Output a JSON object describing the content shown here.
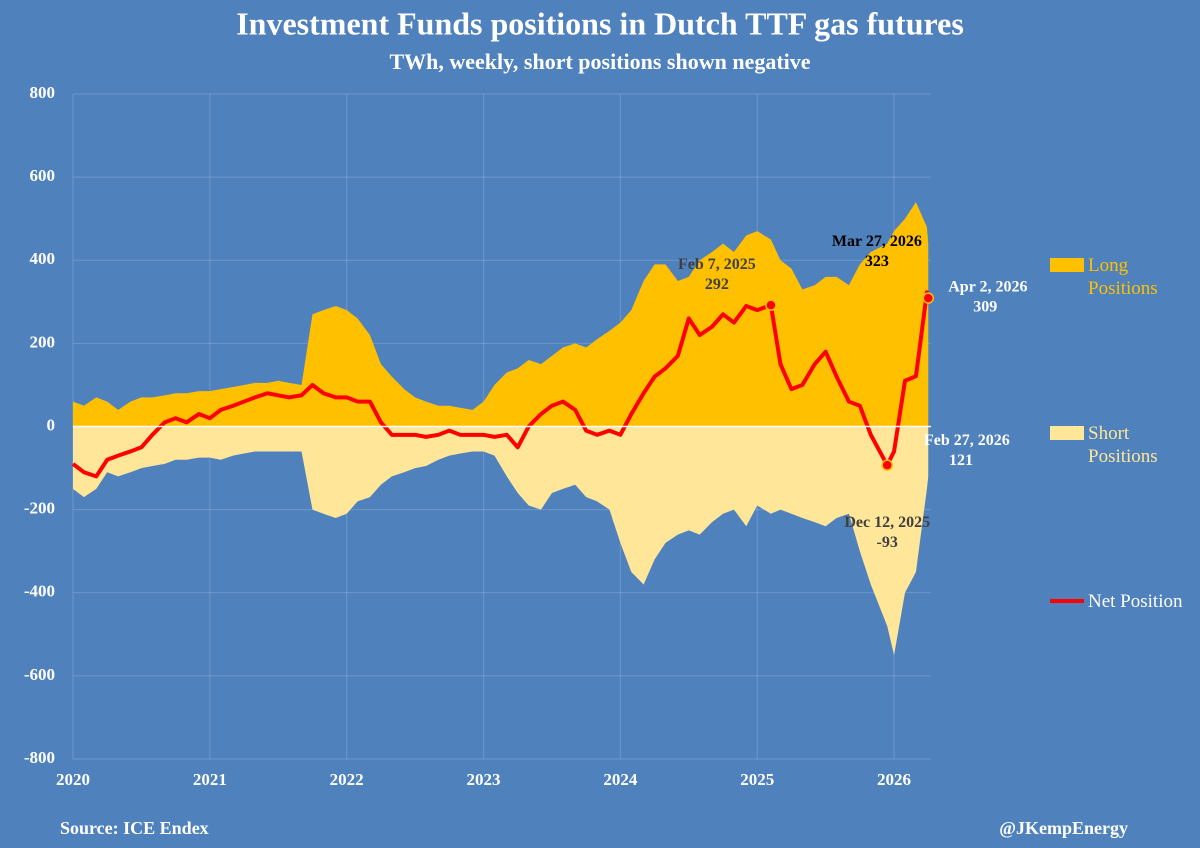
{
  "chart_data": {
    "type": "area-line",
    "title": "Investment Funds positions in Dutch TTF gas futures",
    "subtitle": "TWh, weekly, short positions shown negative",
    "source": "Source: ICE Endex",
    "credit": "@JKempEnergy",
    "x": [
      2020,
      2020.08,
      2020.17,
      2020.25,
      2020.33,
      2020.42,
      2020.5,
      2020.58,
      2020.67,
      2020.75,
      2020.83,
      2020.92,
      2021,
      2021.08,
      2021.17,
      2021.25,
      2021.33,
      2021.42,
      2021.5,
      2021.58,
      2021.67,
      2021.75,
      2021.83,
      2021.92,
      2022,
      2022.08,
      2022.17,
      2022.25,
      2022.33,
      2022.42,
      2022.5,
      2022.58,
      2022.67,
      2022.75,
      2022.83,
      2022.92,
      2023,
      2023.08,
      2023.17,
      2023.25,
      2023.33,
      2023.42,
      2023.5,
      2023.58,
      2023.67,
      2023.75,
      2023.83,
      2023.92,
      2024,
      2024.08,
      2024.17,
      2024.25,
      2024.33,
      2024.42,
      2024.5,
      2024.58,
      2024.67,
      2024.75,
      2024.83,
      2024.92,
      2025,
      2025.1,
      2025.17,
      2025.25,
      2025.33,
      2025.42,
      2025.5,
      2025.58,
      2025.67,
      2025.75,
      2025.83,
      2025.95,
      2026,
      2026.08,
      2026.16,
      2026.24,
      2026.25
    ],
    "series": [
      {
        "name": "Long Positions",
        "kind": "area",
        "color": "#ffc000",
        "values": [
          60,
          50,
          70,
          60,
          40,
          60,
          70,
          70,
          75,
          80,
          80,
          85,
          85,
          90,
          95,
          100,
          105,
          105,
          110,
          105,
          100,
          270,
          280,
          290,
          280,
          260,
          220,
          150,
          120,
          90,
          70,
          60,
          50,
          50,
          45,
          40,
          60,
          100,
          130,
          140,
          160,
          150,
          170,
          190,
          200,
          190,
          210,
          230,
          250,
          280,
          350,
          390,
          390,
          350,
          360,
          400,
          420,
          440,
          420,
          460,
          470,
          450,
          400,
          380,
          330,
          340,
          360,
          360,
          340,
          390,
          420,
          440,
          470,
          500,
          540,
          480,
          440
        ]
      },
      {
        "name": "Short Positions",
        "kind": "area",
        "color": "#ffe699",
        "values": [
          -150,
          -170,
          -150,
          -110,
          -120,
          -110,
          -100,
          -95,
          -90,
          -80,
          -80,
          -75,
          -75,
          -80,
          -70,
          -65,
          -60,
          -60,
          -60,
          -60,
          -60,
          -200,
          -210,
          -220,
          -210,
          -180,
          -170,
          -140,
          -120,
          -110,
          -100,
          -95,
          -80,
          -70,
          -65,
          -60,
          -60,
          -70,
          -120,
          -160,
          -190,
          -200,
          -160,
          -150,
          -140,
          -170,
          -180,
          -200,
          -280,
          -350,
          -380,
          -320,
          -280,
          -260,
          -250,
          -260,
          -230,
          -210,
          -200,
          -240,
          -190,
          -210,
          -200,
          -210,
          -220,
          -230,
          -240,
          -220,
          -210,
          -300,
          -380,
          -480,
          -550,
          -400,
          -350,
          -150,
          -120
        ]
      },
      {
        "name": "Net Position",
        "kind": "line",
        "color": "#ff0000",
        "values": [
          -90,
          -110,
          -120,
          -80,
          -70,
          -60,
          -50,
          -20,
          10,
          20,
          10,
          30,
          20,
          40,
          50,
          60,
          70,
          80,
          75,
          70,
          75,
          100,
          80,
          70,
          70,
          60,
          60,
          10,
          -20,
          -20,
          -20,
          -25,
          -20,
          -10,
          -20,
          -20,
          -20,
          -25,
          -20,
          -50,
          0,
          30,
          50,
          60,
          40,
          -10,
          -20,
          -10,
          -20,
          30,
          80,
          120,
          140,
          170,
          260,
          220,
          240,
          270,
          250,
          290,
          280,
          292,
          150,
          90,
          100,
          150,
          180,
          120,
          60,
          50,
          -20,
          -93,
          -60,
          110,
          121,
          323,
          309
        ]
      }
    ],
    "annotations": [
      {
        "label": "Feb 7, 2025",
        "value": 292,
        "x": 2025.1,
        "dot": true,
        "color": "#404040"
      },
      {
        "label": "Mar 27, 2026",
        "value": 323,
        "x": 2026.24,
        "dot": false,
        "color": "#000000"
      },
      {
        "label": "Apr 2, 2026",
        "value": 309,
        "x": 2026.25,
        "dot": true,
        "color": "#ffffff"
      },
      {
        "label": "Feb 27, 2026",
        "value": 121,
        "x": 2026.16,
        "dot": false,
        "color": "#ffffff"
      },
      {
        "label": "Dec 12, 2025",
        "value": -93,
        "x": 2025.95,
        "dot": true,
        "color": "#404040"
      }
    ],
    "xlim": [
      2020,
      2026.27
    ],
    "xticks": [
      2020,
      2021,
      2022,
      2023,
      2024,
      2025,
      2026
    ],
    "ylim": [
      -800,
      800
    ],
    "yticks": [
      -800,
      -600,
      -400,
      -200,
      0,
      200,
      400,
      600,
      800
    ],
    "grid": true,
    "legend": "right"
  }
}
